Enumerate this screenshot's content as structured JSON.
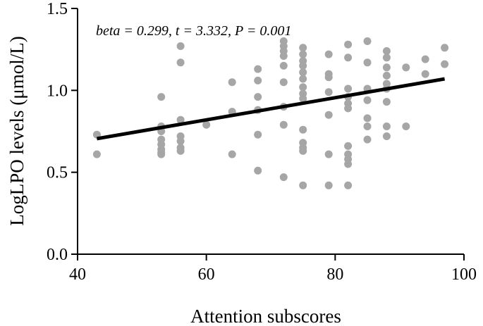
{
  "chart_data": {
    "type": "scatter",
    "title": "",
    "xlabel": "Attention subscores",
    "ylabel": "LogLPO levels (μmol/L)",
    "xlim": [
      40,
      100
    ],
    "ylim": [
      0,
      1.5
    ],
    "xticks": [
      40,
      60,
      80,
      100
    ],
    "yticks": [
      0.0,
      0.5,
      1.0,
      1.5
    ],
    "xtick_labels": [
      "40",
      "60",
      "80",
      "100"
    ],
    "ytick_labels": [
      "0.0",
      "0.5",
      "1.0",
      "1.5"
    ],
    "annotation": "beta = 0.299, t = 3.332, P = 0.001",
    "point_color": "#a6a6a6",
    "line_color": "#000000",
    "regression": {
      "x": [
        43,
        97
      ],
      "y": [
        0.705,
        1.07
      ]
    },
    "points": [
      {
        "x": 43,
        "y": 0.73
      },
      {
        "x": 43,
        "y": 0.61
      },
      {
        "x": 53,
        "y": 0.96
      },
      {
        "x": 53,
        "y": 0.78
      },
      {
        "x": 53,
        "y": 0.75
      },
      {
        "x": 53,
        "y": 0.7
      },
      {
        "x": 53,
        "y": 0.67
      },
      {
        "x": 53,
        "y": 0.64
      },
      {
        "x": 53,
        "y": 0.62
      },
      {
        "x": 53,
        "y": 0.61
      },
      {
        "x": 56,
        "y": 1.27
      },
      {
        "x": 56,
        "y": 1.17
      },
      {
        "x": 56,
        "y": 0.82
      },
      {
        "x": 56,
        "y": 0.72
      },
      {
        "x": 56,
        "y": 0.69
      },
      {
        "x": 56,
        "y": 0.65
      },
      {
        "x": 56,
        "y": 0.63
      },
      {
        "x": 60,
        "y": 0.79
      },
      {
        "x": 64,
        "y": 1.05
      },
      {
        "x": 64,
        "y": 0.87
      },
      {
        "x": 64,
        "y": 0.61
      },
      {
        "x": 68,
        "y": 1.13
      },
      {
        "x": 68,
        "y": 1.06
      },
      {
        "x": 68,
        "y": 0.96
      },
      {
        "x": 68,
        "y": 0.88
      },
      {
        "x": 68,
        "y": 0.73
      },
      {
        "x": 68,
        "y": 0.51
      },
      {
        "x": 72,
        "y": 1.3
      },
      {
        "x": 72,
        "y": 1.27
      },
      {
        "x": 72,
        "y": 1.24
      },
      {
        "x": 72,
        "y": 1.21
      },
      {
        "x": 72,
        "y": 1.15
      },
      {
        "x": 72,
        "y": 1.05
      },
      {
        "x": 72,
        "y": 0.9
      },
      {
        "x": 72,
        "y": 0.79
      },
      {
        "x": 72,
        "y": 0.47
      },
      {
        "x": 75,
        "y": 1.26
      },
      {
        "x": 75,
        "y": 1.22
      },
      {
        "x": 75,
        "y": 1.18
      },
      {
        "x": 75,
        "y": 1.15
      },
      {
        "x": 75,
        "y": 1.11
      },
      {
        "x": 75,
        "y": 1.07
      },
      {
        "x": 75,
        "y": 1.02
      },
      {
        "x": 75,
        "y": 0.98
      },
      {
        "x": 75,
        "y": 0.95
      },
      {
        "x": 75,
        "y": 0.76
      },
      {
        "x": 75,
        "y": 0.68
      },
      {
        "x": 75,
        "y": 0.65
      },
      {
        "x": 75,
        "y": 0.63
      },
      {
        "x": 75,
        "y": 0.42
      },
      {
        "x": 79,
        "y": 1.22
      },
      {
        "x": 79,
        "y": 1.1
      },
      {
        "x": 79,
        "y": 1.08
      },
      {
        "x": 79,
        "y": 0.99
      },
      {
        "x": 79,
        "y": 0.85
      },
      {
        "x": 79,
        "y": 0.61
      },
      {
        "x": 79,
        "y": 0.42
      },
      {
        "x": 82,
        "y": 1.28
      },
      {
        "x": 82,
        "y": 1.2
      },
      {
        "x": 82,
        "y": 1.01
      },
      {
        "x": 82,
        "y": 0.96
      },
      {
        "x": 82,
        "y": 0.92
      },
      {
        "x": 82,
        "y": 0.89
      },
      {
        "x": 82,
        "y": 0.66
      },
      {
        "x": 82,
        "y": 0.61
      },
      {
        "x": 82,
        "y": 0.58
      },
      {
        "x": 82,
        "y": 0.55
      },
      {
        "x": 82,
        "y": 0.42
      },
      {
        "x": 85,
        "y": 1.3
      },
      {
        "x": 85,
        "y": 1.17
      },
      {
        "x": 85,
        "y": 1.01
      },
      {
        "x": 85,
        "y": 0.94
      },
      {
        "x": 85,
        "y": 0.83
      },
      {
        "x": 85,
        "y": 0.78
      },
      {
        "x": 85,
        "y": 0.7
      },
      {
        "x": 88,
        "y": 1.24
      },
      {
        "x": 88,
        "y": 1.2
      },
      {
        "x": 88,
        "y": 1.14
      },
      {
        "x": 88,
        "y": 1.09
      },
      {
        "x": 88,
        "y": 1.04
      },
      {
        "x": 88,
        "y": 1.01
      },
      {
        "x": 88,
        "y": 0.93
      },
      {
        "x": 88,
        "y": 0.78
      },
      {
        "x": 88,
        "y": 0.72
      },
      {
        "x": 91,
        "y": 1.14
      },
      {
        "x": 91,
        "y": 0.78
      },
      {
        "x": 94,
        "y": 1.19
      },
      {
        "x": 94,
        "y": 1.1
      },
      {
        "x": 97,
        "y": 1.26
      },
      {
        "x": 97,
        "y": 1.16
      }
    ]
  }
}
